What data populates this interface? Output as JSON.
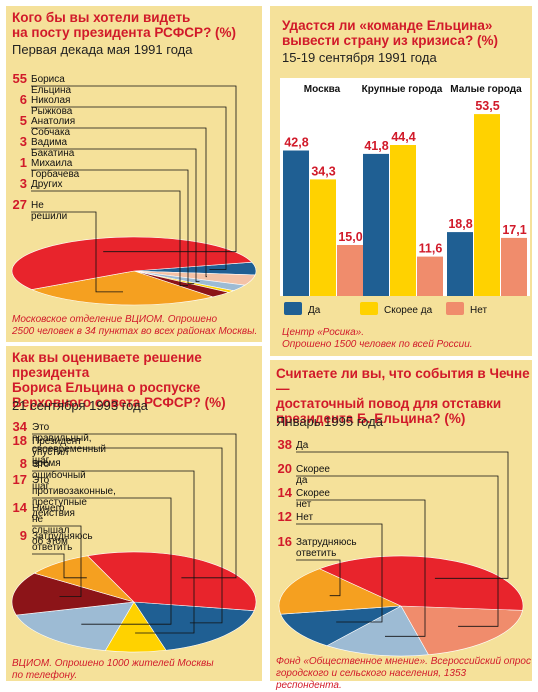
{
  "colors": {
    "red": "#e8242c",
    "orange": "#f5a020",
    "darkred": "#8c1418",
    "blue": "#1f5f93",
    "lightblue": "#9dbbd4",
    "yellow": "#ffd200",
    "palepink": "#f4c2a6",
    "salmon": "#f08c6c",
    "panel": "#f5e19a"
  },
  "chart_data": [
    {
      "type": "pie",
      "title": "Кого бы вы хотели видеть\nна посту президента РСФСР? (%)",
      "subtitle": "Первая декада мая 1991 года",
      "categories": [
        "Бориса Ельцина",
        "Николая Рыжкова",
        "Анатолия Собчака",
        "Вадима Бакатина",
        "Михаила Горбачева",
        "Других",
        "Не решили"
      ],
      "values": [
        55,
        6,
        5,
        3,
        1,
        3,
        27
      ],
      "colors": [
        "#e8242c",
        "#1f5f93",
        "#f4c2a6",
        "#9dbbd4",
        "#ffd200",
        "#8c1418",
        "#f5a020"
      ],
      "source": "Московское отделение ВЦИОМ. Опрошено\n2500 человек  в 34 пунктах во всех районах Москвы."
    },
    {
      "type": "bar",
      "title": "Удастся ли «команде Ельцина»\nвывести страну из кризиса? (%)",
      "subtitle": "15-19 сентября 1991 года",
      "categories": [
        "Москва",
        "Крупные города",
        "Малые города"
      ],
      "series": [
        {
          "name": "Да",
          "values": [
            42.8,
            41.8,
            18.8
          ],
          "labels": [
            "42,8",
            "41,8",
            "18,8"
          ],
          "color": "#1f5f93"
        },
        {
          "name": "Скорее да",
          "values": [
            34.3,
            44.4,
            53.5
          ],
          "labels": [
            "34,3",
            "44,4",
            "53,5"
          ],
          "color": "#ffd200"
        },
        {
          "name": "Нет",
          "values": [
            15.0,
            11.6,
            17.1
          ],
          "labels": [
            "15,0",
            "11,6",
            "17,1"
          ],
          "color": "#f08c6c"
        }
      ],
      "ylim": [
        0,
        60
      ],
      "legend": "bottom",
      "source": "Центр «Росика».\nОпрошено 1500 человек по всей России."
    },
    {
      "type": "pie",
      "title": "Как вы оцениваете решение президента\nБориса Ельцина о роспуске\nВерховного совета РСФСР? (%)",
      "subtitle": "21 сентября 1993 года",
      "categories": [
        "Это правильный, своевременный шаг",
        "Президент упустил время",
        "Это ошибочный шаг",
        "Это противозаконные,\nпреступные действия",
        "Ничего не слышал\nоб этом",
        "Затрудняюсь\nответить"
      ],
      "values": [
        34,
        18,
        8,
        17,
        14,
        9
      ],
      "colors": [
        "#e8242c",
        "#1f5f93",
        "#ffd200",
        "#9dbbd4",
        "#8c1418",
        "#f5a020"
      ],
      "source": "ВЦИОМ. Опрошено 1000 жителей Москвы\nпо телефону."
    },
    {
      "type": "pie",
      "title": "Считаете ли вы, что события в Чечне —\nдостаточный повод для отставки\nпрезидента Б. Ельцина? (%)",
      "subtitle": "Январь 1995 года",
      "categories": [
        "Да",
        "Скорее да",
        "Скорее нет",
        "Нет",
        "Затрудняюсь\nответить"
      ],
      "values": [
        38,
        20,
        14,
        12,
        16
      ],
      "colors": [
        "#e8242c",
        "#f08c6c",
        "#9dbbd4",
        "#1f5f93",
        "#f5a020"
      ],
      "source": "Фонд «Общественное мнение». Всероссийский опрос\nгородского и сельского населения, 1353 респондента."
    }
  ]
}
